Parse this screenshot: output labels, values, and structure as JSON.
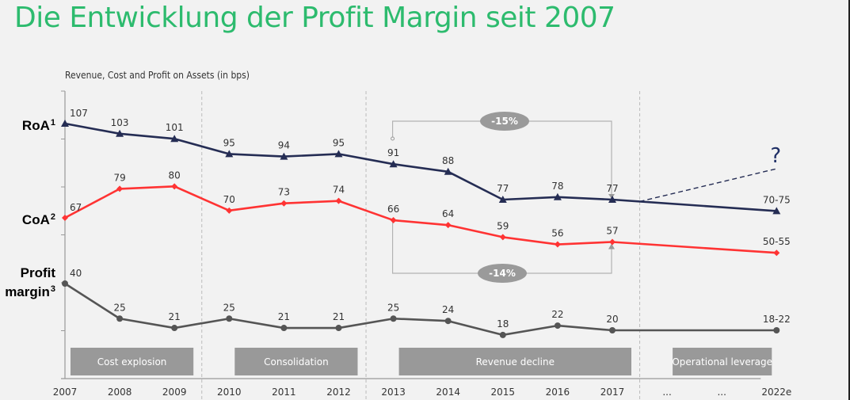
{
  "page": {
    "title": "Die Entwicklung der Profit Margin seit 2007"
  },
  "chart_data": {
    "type": "line",
    "title": "Die Entwicklung der Profit Margin seit 2007",
    "subtitle": "Revenue, Cost and Profit on Assets (in bps)",
    "xlabel": "",
    "ylabel": "bps",
    "grid": false,
    "categories": [
      "2007",
      "2008",
      "2009",
      "2010",
      "2011",
      "2012",
      "2013",
      "2014",
      "2015",
      "2016",
      "2017",
      "...",
      "...",
      "2022e"
    ],
    "series": [
      {
        "name": "RoA",
        "label": "RoA",
        "footnote": "1",
        "color": "#252d54",
        "marker": "triangle",
        "values": [
          107,
          103,
          101,
          95,
          94,
          95,
          91,
          88,
          77,
          78,
          77,
          null,
          null,
          72.5
        ],
        "data_labels": [
          "107",
          "103",
          "101",
          "95",
          "94",
          "95",
          "91",
          "88",
          "77",
          "78",
          "77",
          "",
          "",
          "70-75"
        ]
      },
      {
        "name": "CoA",
        "label": "CoA",
        "footnote": "2",
        "color": "#ff3333",
        "marker": "diamond",
        "values": [
          67,
          79,
          80,
          70,
          73,
          74,
          66,
          64,
          59,
          56,
          57,
          null,
          null,
          52.5
        ],
        "data_labels": [
          "67",
          "79",
          "80",
          "70",
          "73",
          "74",
          "66",
          "64",
          "59",
          "56",
          "57",
          "",
          "",
          "50-55"
        ]
      },
      {
        "name": "Profit margin",
        "label_line1": "Profit",
        "label_line2": "margin",
        "footnote": "3",
        "color": "#555555",
        "label_color": "#2dbb6e",
        "marker": "circle",
        "values": [
          40,
          25,
          21,
          25,
          21,
          21,
          25,
          24,
          18,
          22,
          20,
          null,
          null,
          20
        ],
        "data_labels": [
          "40",
          "25",
          "21",
          "25",
          "21",
          "21",
          "25",
          "24",
          "18",
          "22",
          "20",
          "",
          "",
          "18-22"
        ]
      }
    ],
    "phases": [
      {
        "label": "Cost explosion",
        "from": "2007",
        "to": "2009"
      },
      {
        "label": "Consolidation",
        "from": "2010",
        "to": "2012"
      },
      {
        "label": "Revenue decline",
        "from": "2013",
        "to": "2017"
      },
      {
        "label": "Operational leverage",
        "from": "...",
        "to": "2022e"
      }
    ],
    "annotations": [
      {
        "type": "bracket",
        "series": "RoA",
        "from": "2013",
        "to": "2017",
        "label": "-15%"
      },
      {
        "type": "bracket",
        "series": "CoA",
        "from": "2013",
        "to": "2017",
        "label": "-14%"
      },
      {
        "type": "dashed-projection",
        "series": "RoA",
        "from": "...",
        "to": "2022e",
        "label": "?"
      }
    ],
    "colors": {
      "title": "#2dbb6e",
      "phase_box": "#999999",
      "bracket": "#b3b3b3",
      "badge": "#9a9a9a",
      "axis": "#999999",
      "separator": "#bbbbbb",
      "question": "#1f2f66"
    }
  }
}
